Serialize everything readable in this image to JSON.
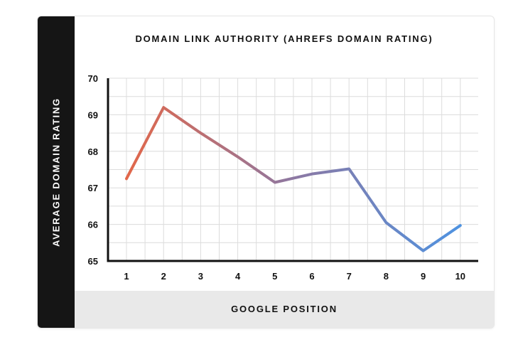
{
  "chart_data": {
    "type": "line",
    "title": "DOMAIN LINK AUTHORITY (AHREFS DOMAIN RATING)",
    "xlabel": "GOOGLE POSITION",
    "ylabel": "AVERAGE DOMAIN RATING",
    "x": [
      1,
      2,
      3,
      4,
      5,
      6,
      7,
      8,
      9,
      10
    ],
    "x_tick_labels": [
      "1",
      "2",
      "3",
      "4",
      "5",
      "6",
      "7",
      "8",
      "9",
      "10"
    ],
    "y_tick_labels": [
      "65",
      "66",
      "67",
      "68",
      "69",
      "70"
    ],
    "series": [
      {
        "values": [
          67.25,
          69.2,
          68.5,
          67.85,
          67.15,
          67.38,
          67.52,
          66.05,
          65.28,
          65.97
        ]
      }
    ],
    "ylim": [
      65,
      70
    ],
    "grid": true,
    "legend": "none",
    "colors": {
      "line_start": "#e2674a",
      "line_mid": "#8c78a3",
      "line_end": "#4d93e2",
      "axis": "#111111",
      "grid": "#dcdcdc",
      "band_dark": "#151515",
      "band_light": "#e9e9e9"
    }
  }
}
